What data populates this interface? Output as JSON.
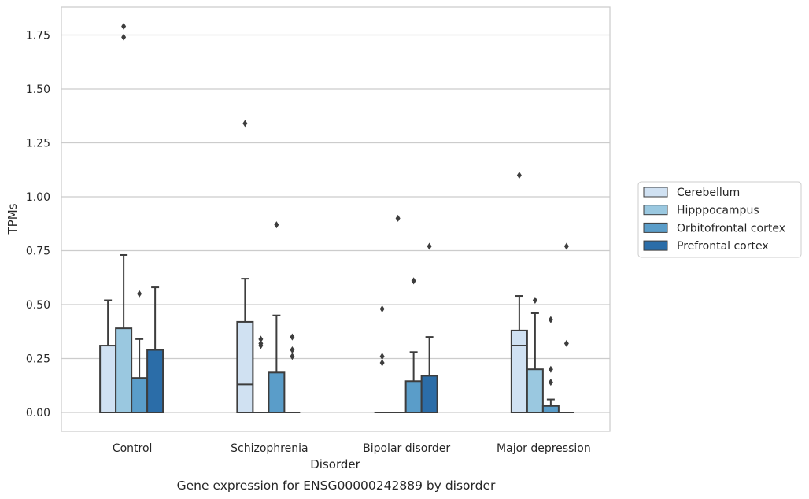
{
  "chart_data": {
    "type": "box",
    "title": "",
    "caption": "Gene expression for ENSG00000242889 by disorder",
    "xlabel": "Disorder",
    "ylabel": "TPMs",
    "ylim": [
      -0.085,
      1.85
    ],
    "yticks": [
      "0.00",
      "0.25",
      "0.50",
      "0.75",
      "1.00",
      "1.25",
      "1.50",
      "1.75"
    ],
    "grid": true,
    "legend_position": "right-center",
    "categories": [
      "Control",
      "Schizophrenia",
      "Bipolar disorder",
      "Major depression"
    ],
    "series": [
      {
        "name": "Cerebellum",
        "color": "#d0e1f2",
        "boxes": [
          {
            "whislo": 0.0,
            "q1": 0.0,
            "med": 0.0,
            "q3": 0.31,
            "whishi": 0.52,
            "fliers": []
          },
          {
            "whislo": 0.0,
            "q1": 0.0,
            "med": 0.13,
            "q3": 0.42,
            "whishi": 0.62,
            "fliers": [
              1.34
            ]
          },
          {
            "whislo": 0.0,
            "q1": 0.0,
            "med": 0.0,
            "q3": 0.0,
            "whishi": 0.0,
            "fliers": [
              0.48,
              0.26,
              0.23
            ]
          },
          {
            "whislo": 0.0,
            "q1": 0.0,
            "med": 0.31,
            "q3": 0.38,
            "whishi": 0.54,
            "fliers": [
              1.1
            ]
          }
        ]
      },
      {
        "name": "Hipppocampus",
        "color": "#9ac8e0",
        "boxes": [
          {
            "whislo": 0.0,
            "q1": 0.0,
            "med": 0.0,
            "q3": 0.39,
            "whishi": 0.73,
            "fliers": [
              1.74,
              1.79
            ]
          },
          {
            "whislo": 0.0,
            "q1": 0.0,
            "med": 0.0,
            "q3": 0.0,
            "whishi": 0.0,
            "fliers": [
              0.34,
              0.32,
              0.31
            ]
          },
          {
            "whislo": 0.0,
            "q1": 0.0,
            "med": 0.0,
            "q3": 0.0,
            "whishi": 0.0,
            "fliers": [
              0.9
            ]
          },
          {
            "whislo": 0.0,
            "q1": 0.0,
            "med": 0.0,
            "q3": 0.2,
            "whishi": 0.46,
            "fliers": [
              0.52
            ]
          }
        ]
      },
      {
        "name": "Orbitofrontal cortex",
        "color": "#5a9dc9",
        "boxes": [
          {
            "whislo": 0.0,
            "q1": 0.0,
            "med": 0.0,
            "q3": 0.16,
            "whishi": 0.34,
            "fliers": [
              0.55
            ]
          },
          {
            "whislo": 0.0,
            "q1": 0.0,
            "med": 0.0,
            "q3": 0.185,
            "whishi": 0.45,
            "fliers": [
              0.87
            ]
          },
          {
            "whislo": 0.0,
            "q1": 0.0,
            "med": 0.0,
            "q3": 0.145,
            "whishi": 0.28,
            "fliers": [
              0.61
            ]
          },
          {
            "whislo": 0.0,
            "q1": 0.0,
            "med": 0.0,
            "q3": 0.03,
            "whishi": 0.06,
            "fliers": [
              0.43,
              0.2,
              0.14
            ]
          }
        ]
      },
      {
        "name": "Prefrontal cortex",
        "color": "#2b6da8",
        "boxes": [
          {
            "whislo": 0.0,
            "q1": 0.0,
            "med": 0.0,
            "q3": 0.29,
            "whishi": 0.58,
            "fliers": []
          },
          {
            "whislo": 0.0,
            "q1": 0.0,
            "med": 0.0,
            "q3": 0.0,
            "whishi": 0.0,
            "fliers": [
              0.35,
              0.29,
              0.26
            ]
          },
          {
            "whislo": 0.0,
            "q1": 0.0,
            "med": 0.0,
            "q3": 0.17,
            "whishi": 0.35,
            "fliers": [
              0.77
            ]
          },
          {
            "whislo": 0.0,
            "q1": 0.0,
            "med": 0.0,
            "q3": 0.0,
            "whishi": 0.0,
            "fliers": [
              0.77,
              0.32
            ]
          }
        ]
      }
    ]
  }
}
